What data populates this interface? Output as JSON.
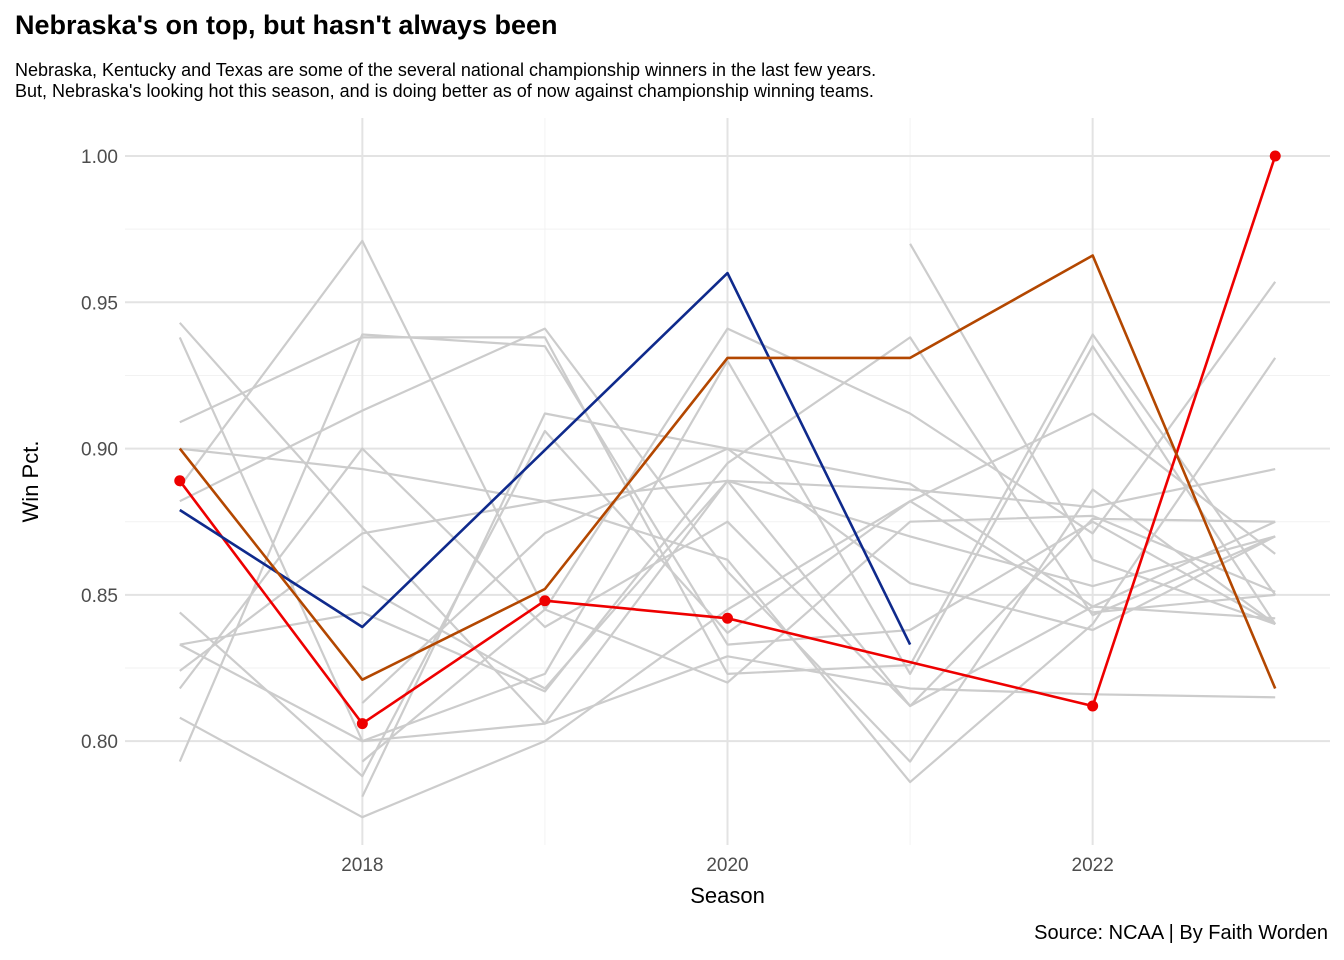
{
  "title": "Nebraska's on top, but hasn't always been",
  "subtitle_lines": [
    "Nebraska, Kentucky and Texas are some of the several national championship winners in the last few years.",
    "But, Nebraska's looking hot this season, and is doing better as of now against championship winning teams."
  ],
  "caption": "Source: NCAA | By Faith Worden",
  "chart_data": {
    "type": "line",
    "xlabel": "Season",
    "ylabel": "Win Pct.",
    "xlim": [
      2016.7,
      2023.3
    ],
    "ylim": [
      0.7645,
      1.013
    ],
    "x_ticks": [
      2018,
      2020,
      2022
    ],
    "x_tick_labels": [
      "2018",
      "2020",
      "2022"
    ],
    "y_ticks": [
      0.8,
      0.85,
      0.9,
      0.95,
      1.0
    ],
    "y_tick_labels": [
      "0.80",
      "0.85",
      "0.90",
      "0.95",
      "1.00"
    ],
    "grid": true,
    "background_series_color": "#cccccc",
    "background_series": [
      {
        "x": [
          2017,
          2018,
          2019,
          2020,
          2021,
          2022,
          2023
        ],
        "values": [
          0.943,
          0.873,
          0.806,
          0.889,
          0.812,
          0.876,
          0.875
        ]
      },
      {
        "x": [
          2017,
          2018,
          2019,
          2020,
          2021,
          2022,
          2023
        ],
        "values": [
          0.938,
          0.8,
          0.823,
          0.93,
          0.823,
          0.935,
          0.84
        ]
      },
      {
        "x": [
          2017,
          2018,
          2019,
          2020,
          2021,
          2022,
          2023
        ],
        "values": [
          0.909,
          0.938,
          0.938,
          0.823,
          0.826,
          0.939,
          0.85
        ]
      },
      {
        "x": [
          2017,
          2018,
          2019,
          2020,
          2021,
          2022,
          2023
        ],
        "values": [
          0.9,
          0.893,
          0.882,
          0.862,
          0.786,
          0.84,
          0.931
        ]
      },
      {
        "x": [
          2017,
          2018,
          2019,
          2020,
          2021,
          2022,
          2023
        ],
        "values": [
          0.887,
          0.971,
          0.845,
          0.941,
          0.912,
          0.871,
          0.957
        ]
      },
      {
        "x": [
          2017,
          2018,
          2019,
          2020,
          2021,
          2022,
          2023
        ],
        "values": [
          0.882,
          0.913,
          0.941,
          0.858,
          0.793,
          0.886,
          0.84
        ]
      },
      {
        "x": [
          2017,
          2018,
          2019,
          2020,
          2021,
          2022,
          2023
        ],
        "values": [
          0.844,
          0.788,
          0.906,
          0.837,
          0.882,
          0.912,
          0.864
        ]
      },
      {
        "x": [
          2017,
          2018,
          2019,
          2020,
          2021,
          2022,
          2023
        ],
        "values": [
          0.833,
          0.844,
          0.817,
          0.895,
          0.938,
          0.843,
          0.87
        ]
      },
      {
        "x": [
          2017,
          2018,
          2019,
          2020,
          2021,
          2022,
          2023
        ],
        "values": [
          0.833,
          0.8,
          0.806,
          0.829,
          0.818,
          0.816,
          0.815
        ]
      },
      {
        "x": [
          2017,
          2018,
          2019,
          2020,
          2021,
          2022,
          2023
        ],
        "values": [
          0.824,
          0.871,
          0.882,
          0.889,
          0.886,
          0.88,
          0.893
        ]
      },
      {
        "x": [
          2017,
          2018,
          2019,
          2020,
          2021,
          2022,
          2023
        ],
        "values": [
          0.818,
          0.9,
          0.839,
          0.875,
          0.812,
          0.846,
          0.875
        ]
      },
      {
        "x": [
          2017,
          2018,
          2019,
          2020,
          2021,
          2022,
          2023
        ],
        "values": [
          0.808,
          0.774,
          0.8,
          0.845,
          0.882,
          0.844,
          0.85
        ]
      },
      {
        "x": [
          2017,
          2018,
          2019,
          2020,
          2021,
          2022,
          2023
        ],
        "values": [
          0.793,
          0.939,
          0.935,
          0.833,
          0.838,
          0.875,
          0.84
        ]
      },
      {
        "x": [
          2018,
          2019,
          2020,
          2021,
          2022,
          2023
        ],
        "values": [
          0.853,
          0.818,
          0.889,
          0.87,
          0.853,
          0.87
        ]
      },
      {
        "x": [
          2018,
          2019,
          2020,
          2021,
          2022,
          2023
        ],
        "values": [
          0.813,
          0.871,
          0.9,
          0.854,
          0.838,
          0.87
        ]
      },
      {
        "x": [
          2018,
          2019,
          2020,
          2021,
          2022,
          2023
        ],
        "values": [
          0.781,
          0.912,
          0.9,
          0.888,
          0.846,
          0.842
        ]
      },
      {
        "x": [
          2018,
          2019,
          2020,
          2021,
          2022,
          2023
        ],
        "values": [
          0.793,
          0.845,
          0.82,
          0.875,
          0.877,
          0.851
        ]
      },
      {
        "x": [
          2021,
          2022,
          2023
        ],
        "values": [
          0.97,
          0.862,
          0.84
        ]
      }
    ],
    "series": [
      {
        "name": "Nebraska",
        "color": "#ee0000",
        "markers": true,
        "x": [
          2017,
          2018,
          2019,
          2020,
          2022,
          2023
        ],
        "values": [
          0.889,
          0.806,
          0.848,
          0.842,
          0.812,
          1.0
        ]
      },
      {
        "name": "Kentucky",
        "color": "#0f2a8c",
        "markers": false,
        "x": [
          2017,
          2018,
          2020,
          2021
        ],
        "values": [
          0.879,
          0.839,
          0.96,
          0.833
        ]
      },
      {
        "name": "Texas",
        "color": "#b34700",
        "markers": false,
        "x": [
          2017,
          2018,
          2019,
          2020,
          2021,
          2022,
          2023
        ],
        "values": [
          0.9,
          0.821,
          0.852,
          0.931,
          0.931,
          0.966,
          0.818
        ]
      }
    ]
  }
}
